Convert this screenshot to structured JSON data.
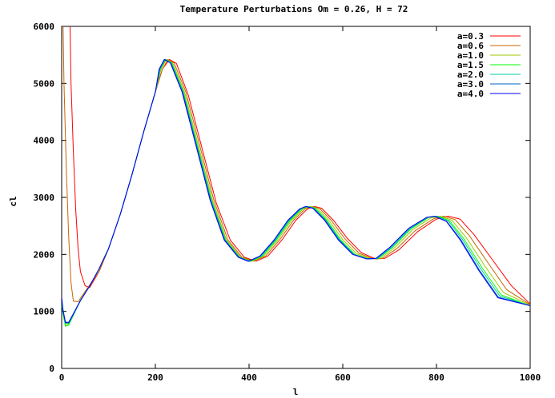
{
  "chart_data": {
    "type": "line",
    "title": "Temperature Perturbations Om = 0.26, H = 72",
    "xlabel": "l",
    "ylabel": "cl",
    "xlim": [
      0,
      1000
    ],
    "ylim": [
      0,
      6000
    ],
    "x_ticks": [
      0,
      200,
      400,
      600,
      800,
      1000
    ],
    "y_ticks": [
      0,
      1000,
      2000,
      3000,
      4000,
      5000,
      6000
    ],
    "grid": false,
    "legend_position": "top-right",
    "series": [
      {
        "name": "a=0.3",
        "color": "#ff0000",
        "points": [
          [
            18,
            6000
          ],
          [
            20,
            5000
          ],
          [
            25,
            3800
          ],
          [
            30,
            2800
          ],
          [
            35,
            2100
          ],
          [
            40,
            1700
          ],
          [
            50,
            1450
          ],
          [
            60,
            1420
          ],
          [
            80,
            1700
          ],
          [
            100,
            2100
          ],
          [
            125,
            2700
          ],
          [
            150,
            3400
          ],
          [
            175,
            4150
          ],
          [
            200,
            4850
          ],
          [
            215,
            5250
          ],
          [
            230,
            5420
          ],
          [
            245,
            5350
          ],
          [
            270,
            4800
          ],
          [
            300,
            3850
          ],
          [
            330,
            2900
          ],
          [
            360,
            2250
          ],
          [
            390,
            1950
          ],
          [
            415,
            1880
          ],
          [
            440,
            1970
          ],
          [
            470,
            2250
          ],
          [
            500,
            2600
          ],
          [
            525,
            2800
          ],
          [
            540,
            2840
          ],
          [
            555,
            2810
          ],
          [
            580,
            2600
          ],
          [
            610,
            2280
          ],
          [
            640,
            2030
          ],
          [
            670,
            1920
          ],
          [
            690,
            1930
          ],
          [
            720,
            2080
          ],
          [
            760,
            2400
          ],
          [
            800,
            2620
          ],
          [
            825,
            2670
          ],
          [
            850,
            2620
          ],
          [
            880,
            2350
          ],
          [
            920,
            1900
          ],
          [
            960,
            1450
          ],
          [
            1000,
            1130
          ]
        ]
      },
      {
        "name": "a=0.6",
        "color": "#c86400",
        "points": [
          [
            3,
            6000
          ],
          [
            5,
            5000
          ],
          [
            10,
            3500
          ],
          [
            15,
            2300
          ],
          [
            20,
            1500
          ],
          [
            25,
            1180
          ],
          [
            35,
            1170
          ],
          [
            50,
            1350
          ],
          [
            80,
            1700
          ],
          [
            100,
            2100
          ],
          [
            125,
            2700
          ],
          [
            150,
            3400
          ],
          [
            175,
            4150
          ],
          [
            200,
            4850
          ],
          [
            215,
            5250
          ],
          [
            227,
            5420
          ],
          [
            240,
            5360
          ],
          [
            265,
            4850
          ],
          [
            295,
            3900
          ],
          [
            325,
            2950
          ],
          [
            355,
            2250
          ],
          [
            385,
            1950
          ],
          [
            410,
            1880
          ],
          [
            435,
            1970
          ],
          [
            465,
            2250
          ],
          [
            495,
            2600
          ],
          [
            520,
            2800
          ],
          [
            535,
            2840
          ],
          [
            550,
            2810
          ],
          [
            575,
            2600
          ],
          [
            605,
            2270
          ],
          [
            635,
            2020
          ],
          [
            665,
            1920
          ],
          [
            685,
            1930
          ],
          [
            715,
            2100
          ],
          [
            755,
            2420
          ],
          [
            795,
            2630
          ],
          [
            815,
            2670
          ],
          [
            840,
            2610
          ],
          [
            870,
            2330
          ],
          [
            910,
            1850
          ],
          [
            950,
            1380
          ],
          [
            1000,
            1120
          ]
        ]
      },
      {
        "name": "a=1.0",
        "color": "#a0c800",
        "points": [
          [
            0,
            1150
          ],
          [
            3,
            950
          ],
          [
            8,
            760
          ],
          [
            15,
            780
          ],
          [
            25,
            950
          ],
          [
            40,
            1200
          ],
          [
            60,
            1450
          ],
          [
            80,
            1750
          ],
          [
            100,
            2100
          ],
          [
            125,
            2700
          ],
          [
            150,
            3400
          ],
          [
            175,
            4150
          ],
          [
            200,
            4850
          ],
          [
            212,
            5250
          ],
          [
            224,
            5420
          ],
          [
            237,
            5360
          ],
          [
            262,
            4850
          ],
          [
            292,
            3900
          ],
          [
            322,
            2950
          ],
          [
            352,
            2250
          ],
          [
            382,
            1950
          ],
          [
            406,
            1880
          ],
          [
            431,
            1970
          ],
          [
            461,
            2250
          ],
          [
            491,
            2600
          ],
          [
            516,
            2800
          ],
          [
            530,
            2840
          ],
          [
            545,
            2810
          ],
          [
            570,
            2600
          ],
          [
            600,
            2260
          ],
          [
            630,
            2010
          ],
          [
            660,
            1920
          ],
          [
            680,
            1930
          ],
          [
            710,
            2110
          ],
          [
            750,
            2440
          ],
          [
            788,
            2640
          ],
          [
            808,
            2670
          ],
          [
            833,
            2600
          ],
          [
            863,
            2300
          ],
          [
            903,
            1800
          ],
          [
            943,
            1330
          ],
          [
            1000,
            1110
          ]
        ]
      },
      {
        "name": "a=1.5",
        "color": "#00ff00",
        "points": [
          [
            0,
            1150
          ],
          [
            3,
            950
          ],
          [
            8,
            740
          ],
          [
            15,
            760
          ],
          [
            25,
            930
          ],
          [
            40,
            1190
          ],
          [
            60,
            1450
          ],
          [
            80,
            1750
          ],
          [
            100,
            2100
          ],
          [
            125,
            2700
          ],
          [
            150,
            3400
          ],
          [
            175,
            4150
          ],
          [
            200,
            4850
          ],
          [
            211,
            5250
          ],
          [
            222,
            5420
          ],
          [
            235,
            5360
          ],
          [
            260,
            4850
          ],
          [
            290,
            3900
          ],
          [
            320,
            2950
          ],
          [
            350,
            2250
          ],
          [
            380,
            1950
          ],
          [
            403,
            1880
          ],
          [
            428,
            1970
          ],
          [
            458,
            2250
          ],
          [
            488,
            2600
          ],
          [
            513,
            2800
          ],
          [
            526,
            2840
          ],
          [
            541,
            2810
          ],
          [
            566,
            2600
          ],
          [
            596,
            2250
          ],
          [
            626,
            2000
          ],
          [
            656,
            1920
          ],
          [
            676,
            1930
          ],
          [
            706,
            2120
          ],
          [
            746,
            2450
          ],
          [
            784,
            2650
          ],
          [
            803,
            2670
          ],
          [
            828,
            2590
          ],
          [
            858,
            2280
          ],
          [
            898,
            1760
          ],
          [
            938,
            1290
          ],
          [
            1000,
            1100
          ]
        ]
      },
      {
        "name": "a=2.0",
        "color": "#00c8a0",
        "points": [
          [
            0,
            1200
          ],
          [
            3,
            980
          ],
          [
            8,
            790
          ],
          [
            15,
            790
          ],
          [
            25,
            940
          ],
          [
            40,
            1190
          ],
          [
            60,
            1450
          ],
          [
            80,
            1750
          ],
          [
            100,
            2100
          ],
          [
            125,
            2700
          ],
          [
            150,
            3400
          ],
          [
            175,
            4150
          ],
          [
            200,
            4850
          ],
          [
            210,
            5250
          ],
          [
            221,
            5420
          ],
          [
            234,
            5360
          ],
          [
            259,
            4850
          ],
          [
            289,
            3900
          ],
          [
            319,
            2950
          ],
          [
            349,
            2250
          ],
          [
            379,
            1950
          ],
          [
            401,
            1880
          ],
          [
            426,
            1970
          ],
          [
            456,
            2250
          ],
          [
            486,
            2600
          ],
          [
            511,
            2800
          ],
          [
            524,
            2840
          ],
          [
            539,
            2810
          ],
          [
            564,
            2600
          ],
          [
            594,
            2250
          ],
          [
            624,
            2000
          ],
          [
            654,
            1920
          ],
          [
            674,
            1930
          ],
          [
            704,
            2120
          ],
          [
            744,
            2450
          ],
          [
            782,
            2650
          ],
          [
            800,
            2670
          ],
          [
            825,
            2590
          ],
          [
            855,
            2270
          ],
          [
            895,
            1740
          ],
          [
            935,
            1270
          ],
          [
            1000,
            1100
          ]
        ]
      },
      {
        "name": "a=3.0",
        "color": "#0064c8",
        "points": [
          [
            0,
            1220
          ],
          [
            3,
            1000
          ],
          [
            8,
            800
          ],
          [
            15,
            800
          ],
          [
            25,
            950
          ],
          [
            40,
            1190
          ],
          [
            60,
            1450
          ],
          [
            80,
            1750
          ],
          [
            100,
            2100
          ],
          [
            125,
            2700
          ],
          [
            150,
            3400
          ],
          [
            175,
            4150
          ],
          [
            200,
            4850
          ],
          [
            209,
            5250
          ],
          [
            220,
            5420
          ],
          [
            233,
            5360
          ],
          [
            258,
            4850
          ],
          [
            288,
            3900
          ],
          [
            318,
            2950
          ],
          [
            348,
            2250
          ],
          [
            378,
            1950
          ],
          [
            399,
            1880
          ],
          [
            424,
            1970
          ],
          [
            454,
            2250
          ],
          [
            484,
            2600
          ],
          [
            509,
            2800
          ],
          [
            522,
            2840
          ],
          [
            537,
            2810
          ],
          [
            562,
            2600
          ],
          [
            592,
            2250
          ],
          [
            622,
            2000
          ],
          [
            652,
            1920
          ],
          [
            672,
            1930
          ],
          [
            702,
            2130
          ],
          [
            742,
            2460
          ],
          [
            780,
            2650
          ],
          [
            797,
            2670
          ],
          [
            822,
            2580
          ],
          [
            852,
            2260
          ],
          [
            892,
            1720
          ],
          [
            932,
            1250
          ],
          [
            1000,
            1100
          ]
        ]
      },
      {
        "name": "a=4.0",
        "color": "#0000ff",
        "points": [
          [
            0,
            1250
          ],
          [
            3,
            1020
          ],
          [
            8,
            810
          ],
          [
            15,
            810
          ],
          [
            25,
            960
          ],
          [
            40,
            1190
          ],
          [
            60,
            1450
          ],
          [
            80,
            1750
          ],
          [
            100,
            2100
          ],
          [
            125,
            2700
          ],
          [
            150,
            3400
          ],
          [
            175,
            4150
          ],
          [
            200,
            4850
          ],
          [
            208,
            5250
          ],
          [
            219,
            5420
          ],
          [
            232,
            5360
          ],
          [
            257,
            4850
          ],
          [
            287,
            3900
          ],
          [
            317,
            2950
          ],
          [
            347,
            2250
          ],
          [
            377,
            1950
          ],
          [
            398,
            1880
          ],
          [
            423,
            1970
          ],
          [
            453,
            2250
          ],
          [
            483,
            2600
          ],
          [
            508,
            2800
          ],
          [
            521,
            2840
          ],
          [
            536,
            2810
          ],
          [
            561,
            2600
          ],
          [
            591,
            2250
          ],
          [
            621,
            2000
          ],
          [
            651,
            1920
          ],
          [
            671,
            1930
          ],
          [
            701,
            2130
          ],
          [
            741,
            2460
          ],
          [
            779,
            2650
          ],
          [
            796,
            2670
          ],
          [
            821,
            2580
          ],
          [
            851,
            2250
          ],
          [
            891,
            1710
          ],
          [
            931,
            1240
          ],
          [
            1000,
            1100
          ]
        ]
      }
    ]
  }
}
